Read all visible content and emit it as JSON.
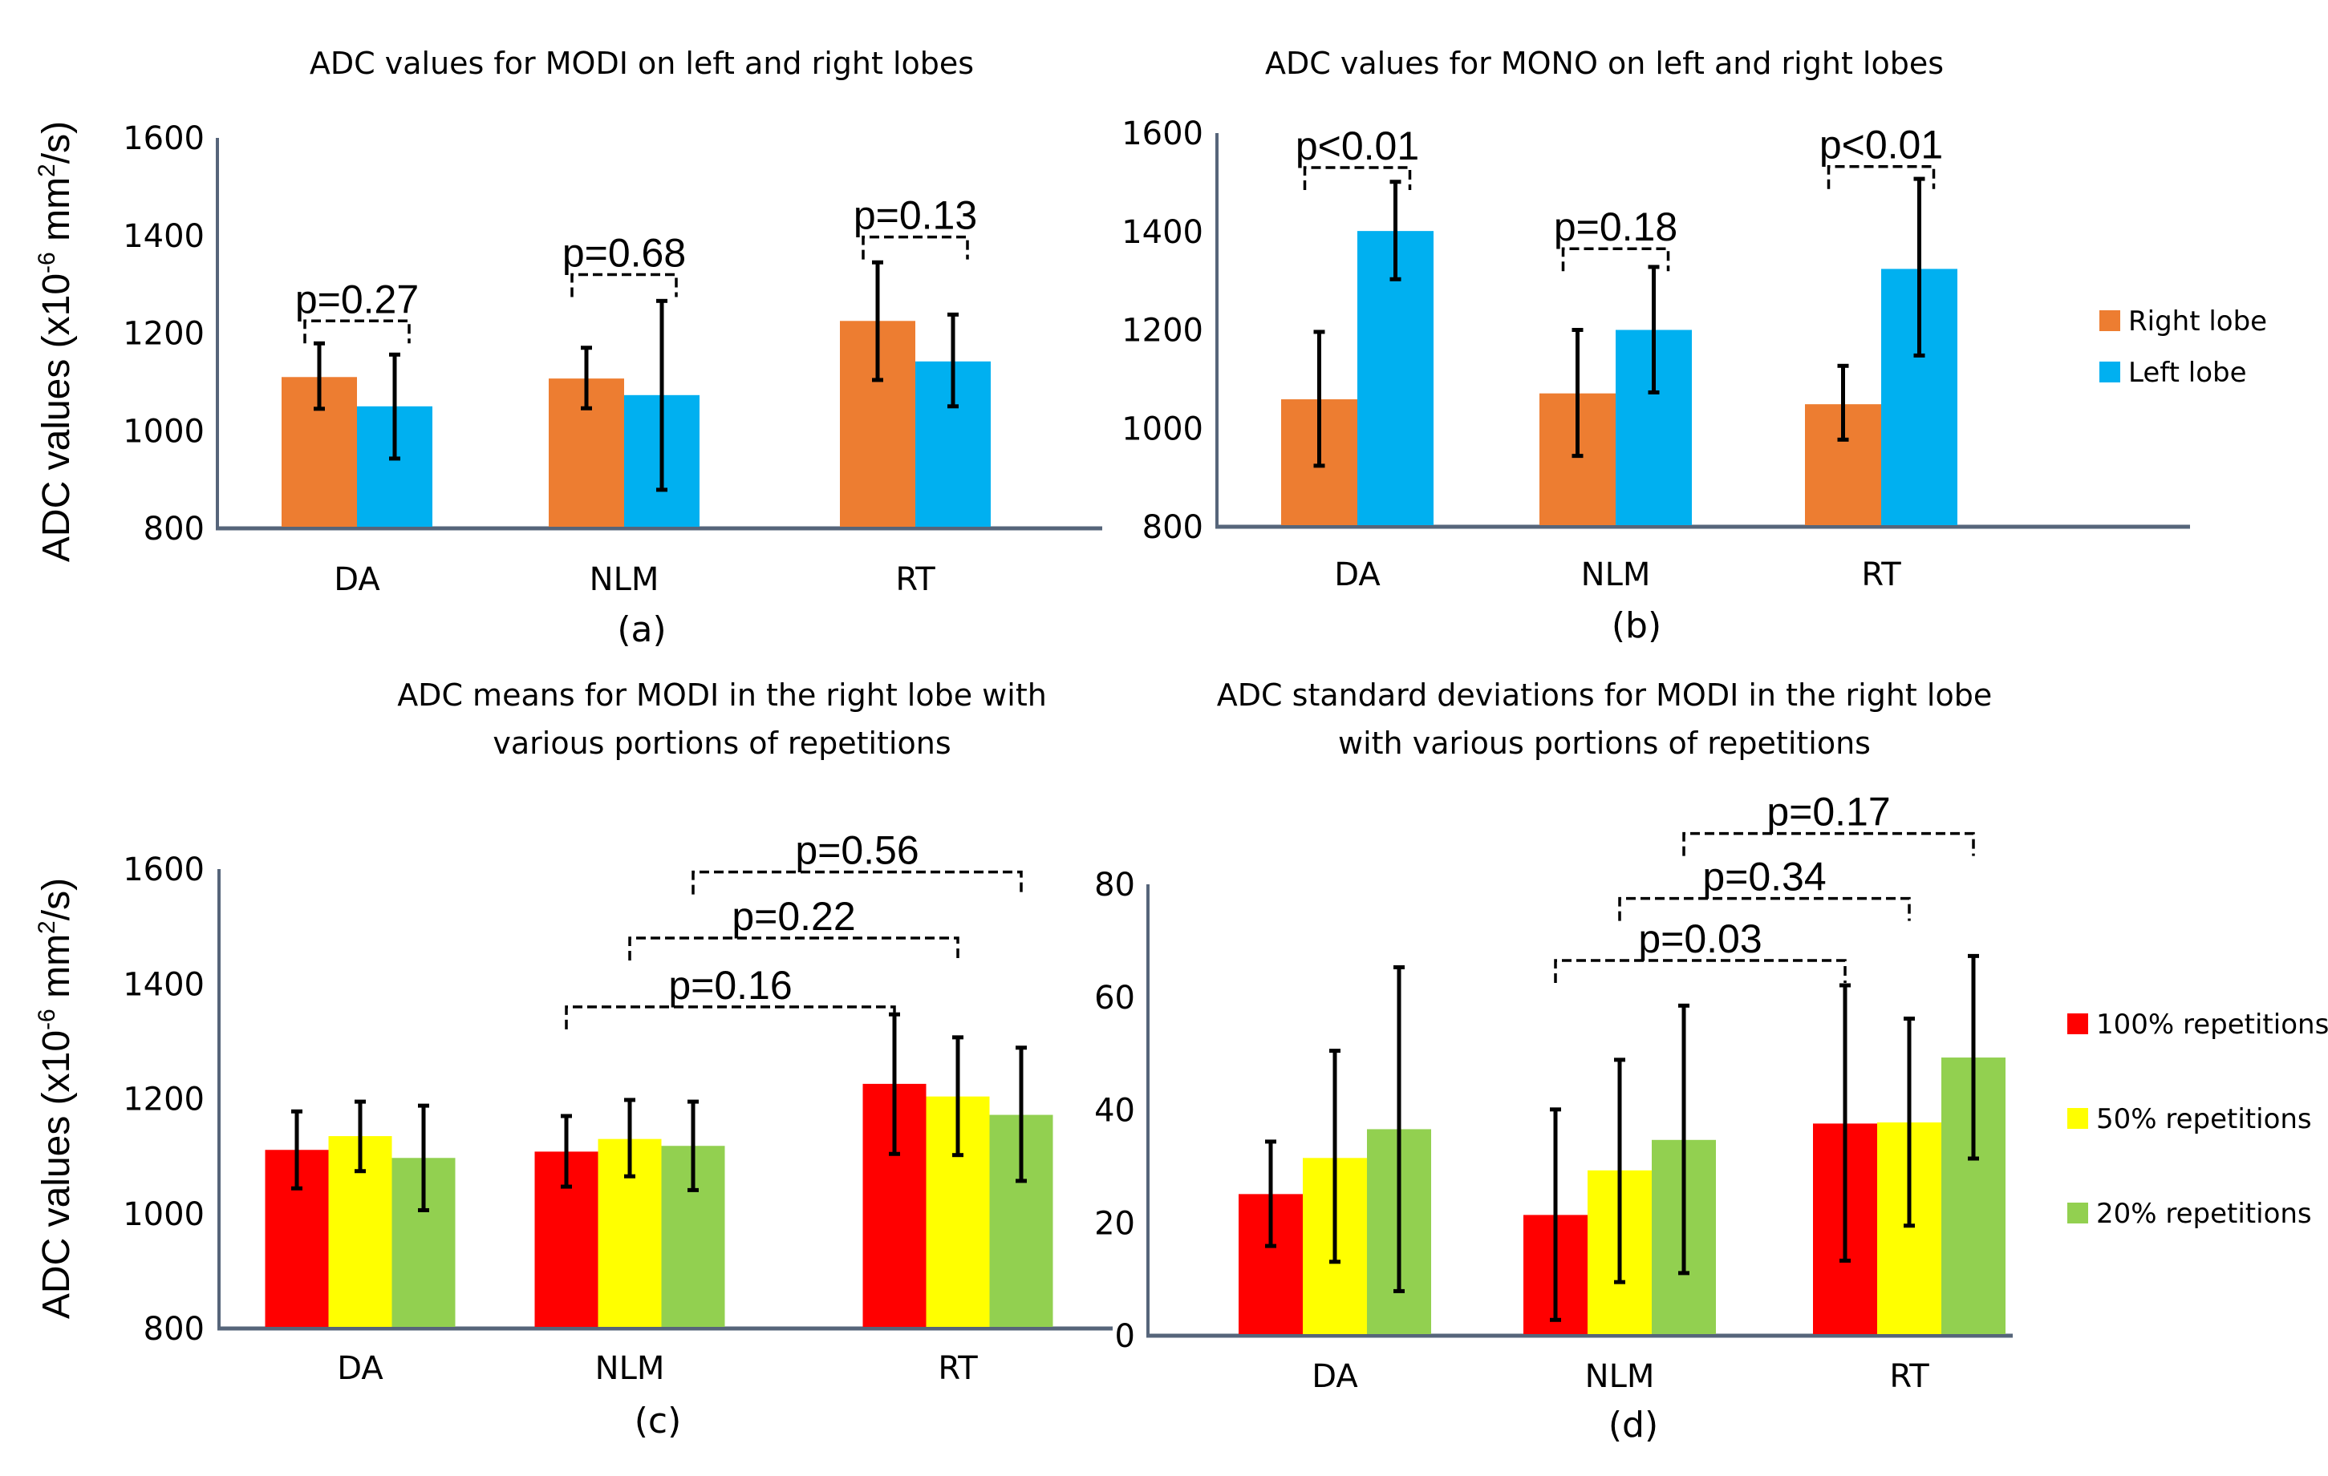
{
  "figure": {
    "panels_count": 4
  },
  "chart_data": [
    {
      "id": "a",
      "type": "bar",
      "title": "ADC values for MODI on left and right lobes",
      "subfigure_label": "(a)",
      "xlabel": "",
      "ylabel": "ADC values (x10-6 mm2/s)",
      "ylabel_parts": {
        "pre": "ADC values (x10",
        "sup1": "-6",
        "mid": " mm",
        "sup2": "2",
        "post": "/s)"
      },
      "ylim": [
        800,
        1600
      ],
      "yticks": [
        800,
        1000,
        1200,
        1400,
        1600
      ],
      "grid": false,
      "categories": [
        "DA",
        "NLM",
        "RT"
      ],
      "series": [
        {
          "name": "Right lobe",
          "color": "#ED7D31",
          "values": [
            1110,
            1107,
            1225
          ],
          "err_low": [
            1045,
            1046,
            1104
          ],
          "err_high": [
            1179,
            1170,
            1345
          ]
        },
        {
          "name": "Left lobe",
          "color": "#00B0F0",
          "values": [
            1050,
            1073,
            1142
          ],
          "err_low": [
            943,
            879,
            1050
          ],
          "err_high": [
            1156,
            1266,
            1238
          ]
        }
      ],
      "legend": null,
      "annotations": [
        {
          "text": "p=0.27",
          "from_category": 0,
          "from_series": 0,
          "to_category": 0,
          "to_series": 1,
          "level": 1225
        },
        {
          "text": "p=0.68",
          "from_category": 1,
          "from_series": 0,
          "to_category": 1,
          "to_series": 1,
          "level": 1320
        },
        {
          "text": "p=0.13",
          "from_category": 2,
          "from_series": 0,
          "to_category": 2,
          "to_series": 1,
          "level": 1397
        }
      ]
    },
    {
      "id": "b",
      "type": "bar",
      "title": "ADC values for MONO on left and right lobes",
      "subfigure_label": "(b)",
      "xlabel": "",
      "ylabel": "",
      "ylim": [
        800,
        1600
      ],
      "yticks": [
        800,
        1000,
        1200,
        1400,
        1600
      ],
      "grid": false,
      "categories": [
        "DA",
        "NLM",
        "RT"
      ],
      "series": [
        {
          "name": "Right lobe",
          "color": "#ED7D31",
          "values": [
            1059,
            1071,
            1049
          ],
          "err_low": [
            924,
            944,
            977
          ],
          "err_high": [
            1196,
            1200,
            1127
          ]
        },
        {
          "name": "Left lobe",
          "color": "#00B0F0",
          "values": [
            1401,
            1200,
            1324
          ],
          "err_low": [
            1303,
            1073,
            1148
          ],
          "err_high": [
            1501,
            1328,
            1507
          ]
        }
      ],
      "legend": {
        "position": "right",
        "entries": [
          "Right lobe",
          "Left lobe"
        ]
      },
      "annotations": [
        {
          "text": "p<0.01",
          "from_category": 0,
          "from_series": 0,
          "to_category": 0,
          "to_series": 1,
          "level": 1530
        },
        {
          "text": "p=0.18",
          "from_category": 1,
          "from_series": 0,
          "to_category": 1,
          "to_series": 1,
          "level": 1365
        },
        {
          "text": "p<0.01",
          "from_category": 2,
          "from_series": 0,
          "to_category": 2,
          "to_series": 1,
          "level": 1532
        }
      ]
    },
    {
      "id": "c",
      "type": "bar",
      "title": "ADC means for MODI in the right lobe with various portions of repetitions",
      "title_lines": [
        "ADC means for MODI in the right lobe with",
        "various portions of repetitions"
      ],
      "subfigure_label": "(c)",
      "xlabel": "",
      "ylabel": "ADC values (x10-6 mm2/s)",
      "ylabel_parts": {
        "pre": "ADC values (x10",
        "sup1": "-6",
        "mid": " mm",
        "sup2": "2",
        "post": "/s)"
      },
      "ylim": [
        800,
        1600
      ],
      "yticks": [
        800,
        1000,
        1200,
        1400,
        1600
      ],
      "grid": false,
      "categories": [
        "DA",
        "NLM",
        "RT"
      ],
      "series": [
        {
          "name": "100% repetitions",
          "color": "#FF0000",
          "values": [
            1111,
            1108,
            1226
          ],
          "err_low": [
            1044,
            1047,
            1104
          ],
          "err_high": [
            1178,
            1170,
            1347
          ]
        },
        {
          "name": "50% repetitions",
          "color": "#FFFF00",
          "values": [
            1135,
            1130,
            1204
          ],
          "err_low": [
            1074,
            1065,
            1102
          ],
          "err_high": [
            1195,
            1198,
            1307
          ]
        },
        {
          "name": "20% repetitions",
          "color": "#92D050",
          "values": [
            1097,
            1118,
            1172
          ],
          "err_low": [
            1006,
            1041,
            1057
          ],
          "err_high": [
            1188,
            1195,
            1289
          ]
        }
      ],
      "legend": null,
      "annotations": [
        {
          "text": "p=0.16",
          "from_category": 1,
          "from_series": 0,
          "to_category": 2,
          "to_series": 0,
          "level": 1360
        },
        {
          "text": "p=0.22",
          "from_category": 1,
          "from_series": 1,
          "to_category": 2,
          "to_series": 1,
          "level": 1480
        },
        {
          "text": "p=0.56",
          "from_category": 1,
          "from_series": 2,
          "to_category": 2,
          "to_series": 2,
          "level": 1595
        }
      ]
    },
    {
      "id": "d",
      "type": "bar",
      "title": "ADC standard deviations for MODI in the right lobe with various portions of repetitions",
      "title_lines": [
        "ADC standard deviations for MODI in the right lobe",
        "with various portions of repetitions"
      ],
      "subfigure_label": "(d)",
      "xlabel": "",
      "ylabel": "",
      "ylim": [
        0,
        80
      ],
      "yticks": [
        0,
        20,
        40,
        60,
        80
      ],
      "grid": false,
      "categories": [
        "DA",
        "NLM",
        "RT"
      ],
      "series": [
        {
          "name": "100% repetitions",
          "color": "#FF0000",
          "values": [
            25.1,
            21.4,
            37.6
          ],
          "err_low": [
            15.9,
            2.8,
            13.3
          ],
          "err_high": [
            34.4,
            40.1,
            62.1
          ]
        },
        {
          "name": "50% repetitions",
          "color": "#FFFF00",
          "values": [
            31.5,
            29.3,
            37.8
          ],
          "err_low": [
            13.1,
            9.5,
            19.5
          ],
          "err_high": [
            50.5,
            48.9,
            56.2
          ]
        },
        {
          "name": "20% repetitions",
          "color": "#92D050",
          "values": [
            36.6,
            34.7,
            49.3
          ],
          "err_low": [
            7.9,
            11.1,
            31.4
          ],
          "err_high": [
            65.3,
            58.5,
            67.3
          ]
        }
      ],
      "legend": {
        "position": "right",
        "entries": [
          "100% repetitions",
          "50% repetitions",
          "20% repetitions"
        ]
      },
      "annotations": [
        {
          "text": "p=0.03",
          "from_category": 1,
          "from_series": 0,
          "to_category": 2,
          "to_series": 0,
          "level": 66.5
        },
        {
          "text": "p=0.34",
          "from_category": 1,
          "from_series": 1,
          "to_category": 2,
          "to_series": 1,
          "level": 77.5
        },
        {
          "text": "p=0.17",
          "from_category": 1,
          "from_series": 2,
          "to_category": 2,
          "to_series": 2,
          "level": 89
        }
      ]
    }
  ]
}
